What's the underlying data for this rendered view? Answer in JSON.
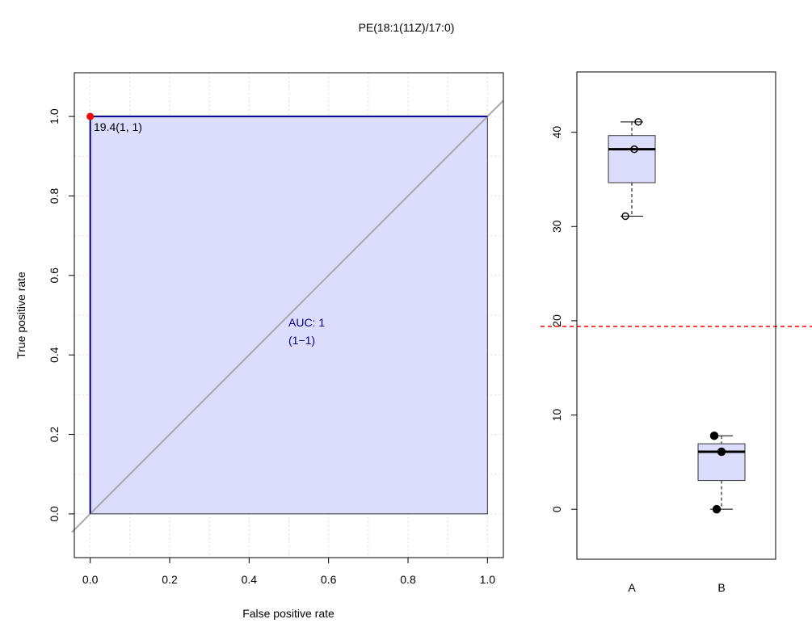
{
  "title": "PE(18:1(11Z)/17:0)",
  "colors": {
    "roc_fill": "#dcdcfc",
    "roc_line": "#00008b",
    "diagonal": "#aaaaaa",
    "threshold_point": "#ff0000",
    "threshold_line": "#ff0000",
    "box_fill": "#dcdcfc"
  },
  "chart_data": [
    {
      "type": "line",
      "subtype": "roc",
      "xlabel": "False positive rate",
      "ylabel": "True positive rate",
      "xlim": [
        -0.04,
        1.04
      ],
      "ylim": [
        -0.11,
        1.11
      ],
      "xticks": [
        "0.0",
        "0.2",
        "0.4",
        "0.6",
        "0.8",
        "1.0"
      ],
      "yticks": [
        "0.0",
        "0.2",
        "0.4",
        "0.6",
        "0.8",
        "1.0"
      ],
      "grid": true,
      "roc_points": [
        [
          0,
          0
        ],
        [
          0,
          1
        ],
        [
          1,
          1
        ]
      ],
      "auc_fill": true,
      "diagonal": true,
      "best_threshold": {
        "x": 0,
        "y": 1,
        "label": "19.4(1, 1)"
      },
      "auc_label": "AUC: 1",
      "auc_ci_label": "(1−1)"
    },
    {
      "type": "box",
      "categories": [
        "A",
        "B"
      ],
      "ylim": [
        -5.3,
        46.4
      ],
      "yticks": [
        "0",
        "10",
        "20",
        "30",
        "40"
      ],
      "groups": [
        {
          "name": "A",
          "min": 31.1,
          "q1": 34.65,
          "median": 38.2,
          "q3": 39.65,
          "max": 41.1,
          "points": [
            41.1,
            38.2,
            31.1
          ],
          "point_style": "open"
        },
        {
          "name": "B",
          "min": 0.0,
          "q1": 3.05,
          "median": 6.1,
          "q3": 6.95,
          "max": 7.8,
          "points": [
            7.8,
            6.1,
            0.0
          ],
          "point_style": "filled"
        }
      ],
      "threshold": 19.4
    }
  ]
}
